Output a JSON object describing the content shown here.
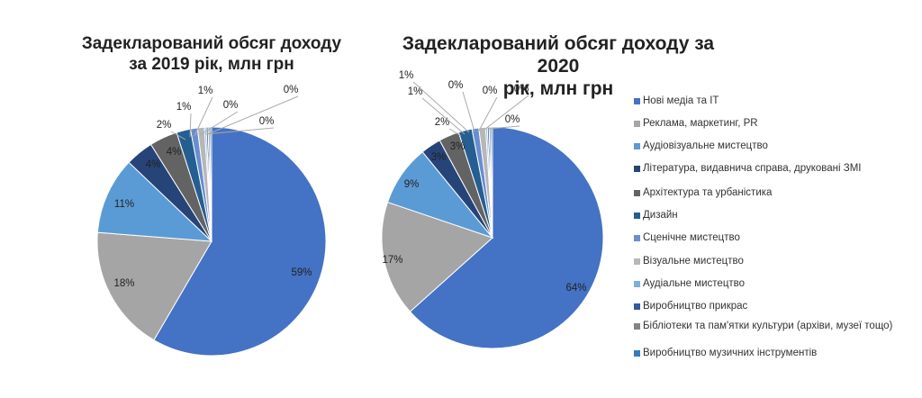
{
  "chart_data": [
    {
      "type": "pie",
      "title": "Задекларований обсяг доходу за 2019 рік, млн грн",
      "title_lines": [
        "Задекларований обсяг доходу",
        "за 2019 рік, млн грн"
      ],
      "categories": [
        "Нові медіа та ІТ",
        "Реклама, маркетинг, PR",
        "Аудіовізуальне мистецтво",
        "Література, видавнича справа, друковані ЗМІ",
        "Архітектура та урбаністика",
        "Дизайн",
        "Сценічне мистецтво",
        "Візуальне мистецтво",
        "Аудіальне мистецтво",
        "Виробництво прикрас",
        "Бібліотеки та пам'ятки культури (архіви, музеї тощо)",
        "Виробництво музичних інструментів"
      ],
      "values": [
        59,
        18,
        11,
        4,
        4,
        2,
        1,
        1,
        0,
        0,
        0,
        0
      ],
      "labels": [
        "59%",
        "18%",
        "11%",
        "4%",
        "4%",
        "2%",
        "1%",
        "1%",
        "0%",
        "0%",
        "0%",
        "0%"
      ]
    },
    {
      "type": "pie",
      "title": "Задекларований обсяг доходу за 2020 рік, млн грн",
      "title_lines": [
        "Задекларований обсяг доходу за 2020",
        "рік, млн грн"
      ],
      "categories": [
        "Нові медіа та ІТ",
        "Реклама, маркетинг, PR",
        "Аудіовізуальне мистецтво",
        "Література, видавнича справа, друковані ЗМІ",
        "Архітектура та урбаністика",
        "Дизайн",
        "Сценічне мистецтво",
        "Візуальне мистецтво",
        "Аудіальне мистецтво",
        "Виробництво прикрас",
        "Бібліотеки та пам'ятки культури (архіви, музеї тощо)",
        "Виробництво музичних інструментів"
      ],
      "values": [
        64,
        17,
        9,
        3,
        3,
        2,
        1,
        1,
        0,
        0,
        0,
        0
      ],
      "labels": [
        "64%",
        "17%",
        "9%",
        "3%",
        "3%",
        "2%",
        "1%",
        "1%",
        "0%",
        "0%",
        "0%",
        "0%"
      ]
    }
  ],
  "legend": {
    "placement": "right",
    "items": [
      {
        "label": "Нові медіа та ІТ",
        "color": "#4472c4"
      },
      {
        "label": "Реклама, маркетинг, PR",
        "color": "#a5a5a5"
      },
      {
        "label": "Аудіовізуальне мистецтво",
        "color": "#5b9bd5"
      },
      {
        "label": "Література, видавнича справа, друковані ЗМІ",
        "color": "#264478"
      },
      {
        "label": "Архітектура та урбаністика",
        "color": "#636363"
      },
      {
        "label": "Дизайн",
        "color": "#255e91"
      },
      {
        "label": "Сценічне мистецтво",
        "color": "#698ed0"
      },
      {
        "label": "Візуальне мистецтво",
        "color": "#b7b7b7"
      },
      {
        "label": "Аудіальне мистецтво",
        "color": "#7cafdd"
      },
      {
        "label": "Виробництво прикрас",
        "color": "#335aa1"
      },
      {
        "label": "Бібліотеки та пам'ятки культури (архіви, музеї тощо)",
        "color": "#848484"
      },
      {
        "label": "Виробництво музичних інструментів",
        "color": "#327dc2"
      }
    ]
  }
}
